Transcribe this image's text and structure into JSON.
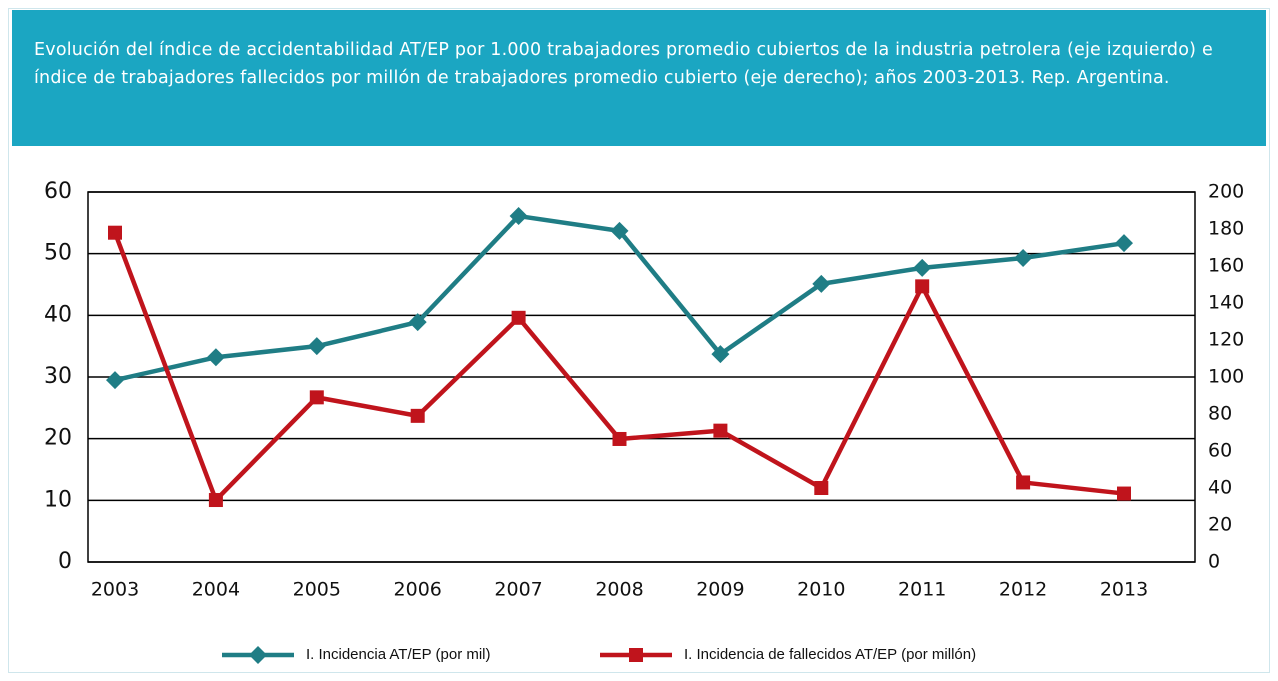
{
  "chart_data": {
    "type": "line",
    "title": "Evolución del índice de accidentabilidad AT/EP por 1.000 trabajadores promedio cubiertos de la industria petrolera (eje izquierdo) e índice de trabajadores fallecidos por millón de trabajadores promedio cubierto (eje derecho); años 2003-2013. Rep. Argentina.",
    "categories": [
      "2003",
      "2004",
      "2005",
      "2006",
      "2007",
      "2008",
      "2009",
      "2010",
      "2011",
      "2012",
      "2013"
    ],
    "series": [
      {
        "name": "I. Incidencia AT/EP (por mil)",
        "color": "#1f7d85",
        "marker": "diamond",
        "values": [
          29.5,
          33.2,
          35,
          38.9,
          56.1,
          53.7,
          33.7,
          45.1,
          47.7,
          49.3,
          51.7
        ]
      },
      {
        "name": "I. Incidencia de fallecidos AT/EP (por millón)",
        "color": "#c0141c",
        "marker": "square",
        "axis": "y2",
        "values": [
          178,
          33.5,
          89,
          79,
          132,
          66.5,
          71,
          40,
          149,
          43,
          37
        ]
      }
    ],
    "ylim": [
      0,
      60
    ],
    "yticks": [
      0,
      10,
      20,
      30,
      40,
      50,
      60
    ],
    "y2lim": [
      0,
      200
    ],
    "y2ticks": [
      0,
      20,
      40,
      60,
      80,
      100,
      120,
      140,
      160,
      180,
      200
    ],
    "grid": true,
    "legend": "bottom"
  }
}
